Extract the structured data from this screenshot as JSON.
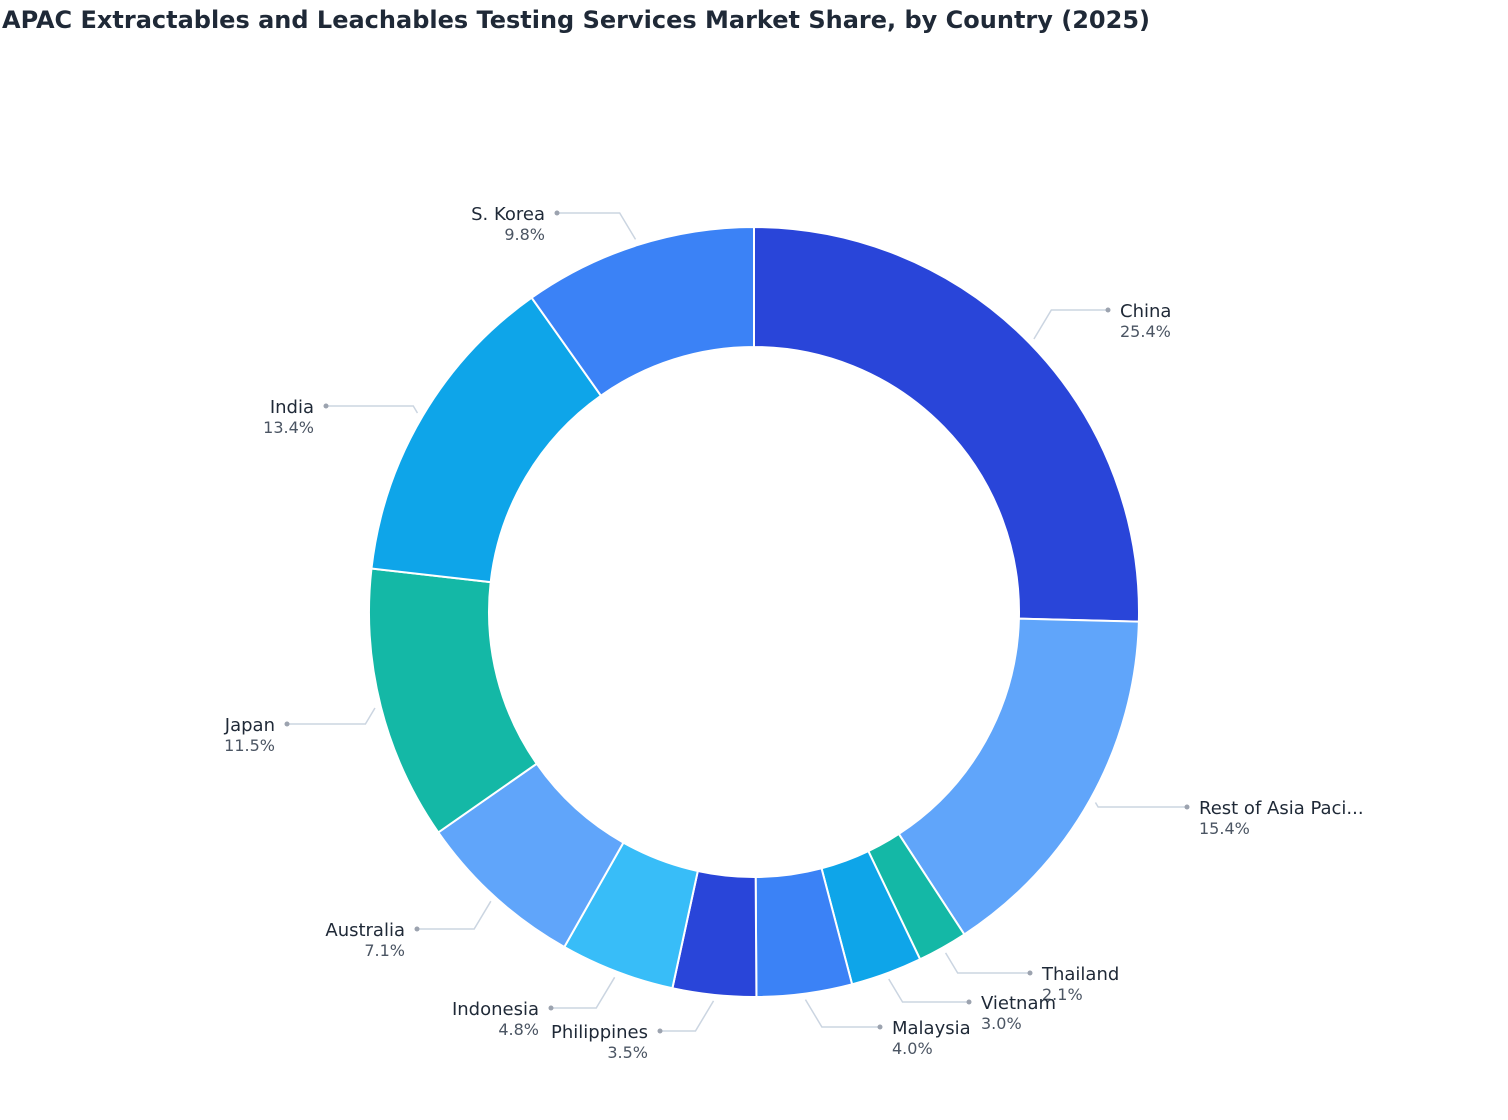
{
  "chart_data": {
    "type": "pie",
    "title": "APAC Extractables and Leachables Testing Services Market Share, by Country (2025)",
    "categories": [
      "China",
      "Rest of Asia Paci...",
      "Thailand",
      "Vietnam",
      "Malaysia",
      "Philippines",
      "Indonesia",
      "Australia",
      "Japan",
      "India",
      "S. Korea"
    ],
    "values": [
      25.4,
      15.4,
      2.1,
      3.0,
      4.0,
      3.5,
      4.8,
      7.1,
      11.5,
      13.4,
      9.8
    ],
    "value_labels": [
      "25.4%",
      "15.4%",
      "2.1%",
      "3.0%",
      "4.0%",
      "3.5%",
      "4.8%",
      "7.1%",
      "11.5%",
      "13.4%",
      "9.8%"
    ],
    "colors": [
      "#2945d9",
      "#60a5fa",
      "#14b8a6",
      "#0ea5e9",
      "#3b82f6",
      "#2945d9",
      "#38bdf8",
      "#60a5fa",
      "#14b8a6",
      "#0ea5e9",
      "#3b82f6"
    ]
  }
}
